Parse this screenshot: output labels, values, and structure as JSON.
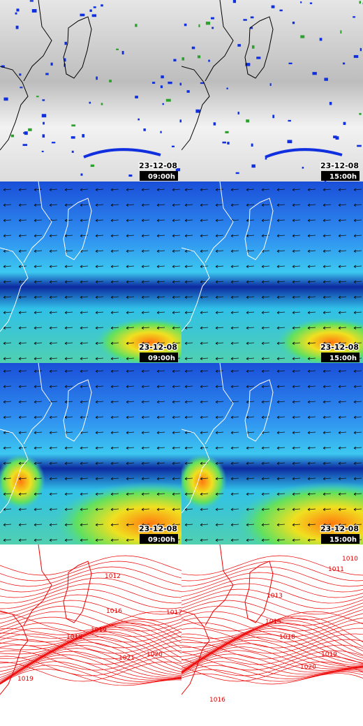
{
  "panels": [
    [
      {
        "date": "23-12-08",
        "time": "09:00h"
      },
      {
        "date": "23-12-08",
        "time": "15:00h"
      }
    ],
    [
      {
        "date": "23-12-08",
        "time": "09:00h"
      },
      {
        "date": "23-12-08",
        "time": "15:00h"
      }
    ],
    [
      {
        "date": "23-12-08",
        "time": "09:00h"
      },
      {
        "date": "23-12-08",
        "time": "15:00h"
      }
    ]
  ],
  "isobars": [
    [
      1012,
      1016,
      1017,
      1018,
      1019,
      1021,
      1020,
      1019
    ],
    [
      1010,
      1011,
      1013,
      1015,
      1018,
      1019,
      1020,
      1016
    ]
  ]
}
